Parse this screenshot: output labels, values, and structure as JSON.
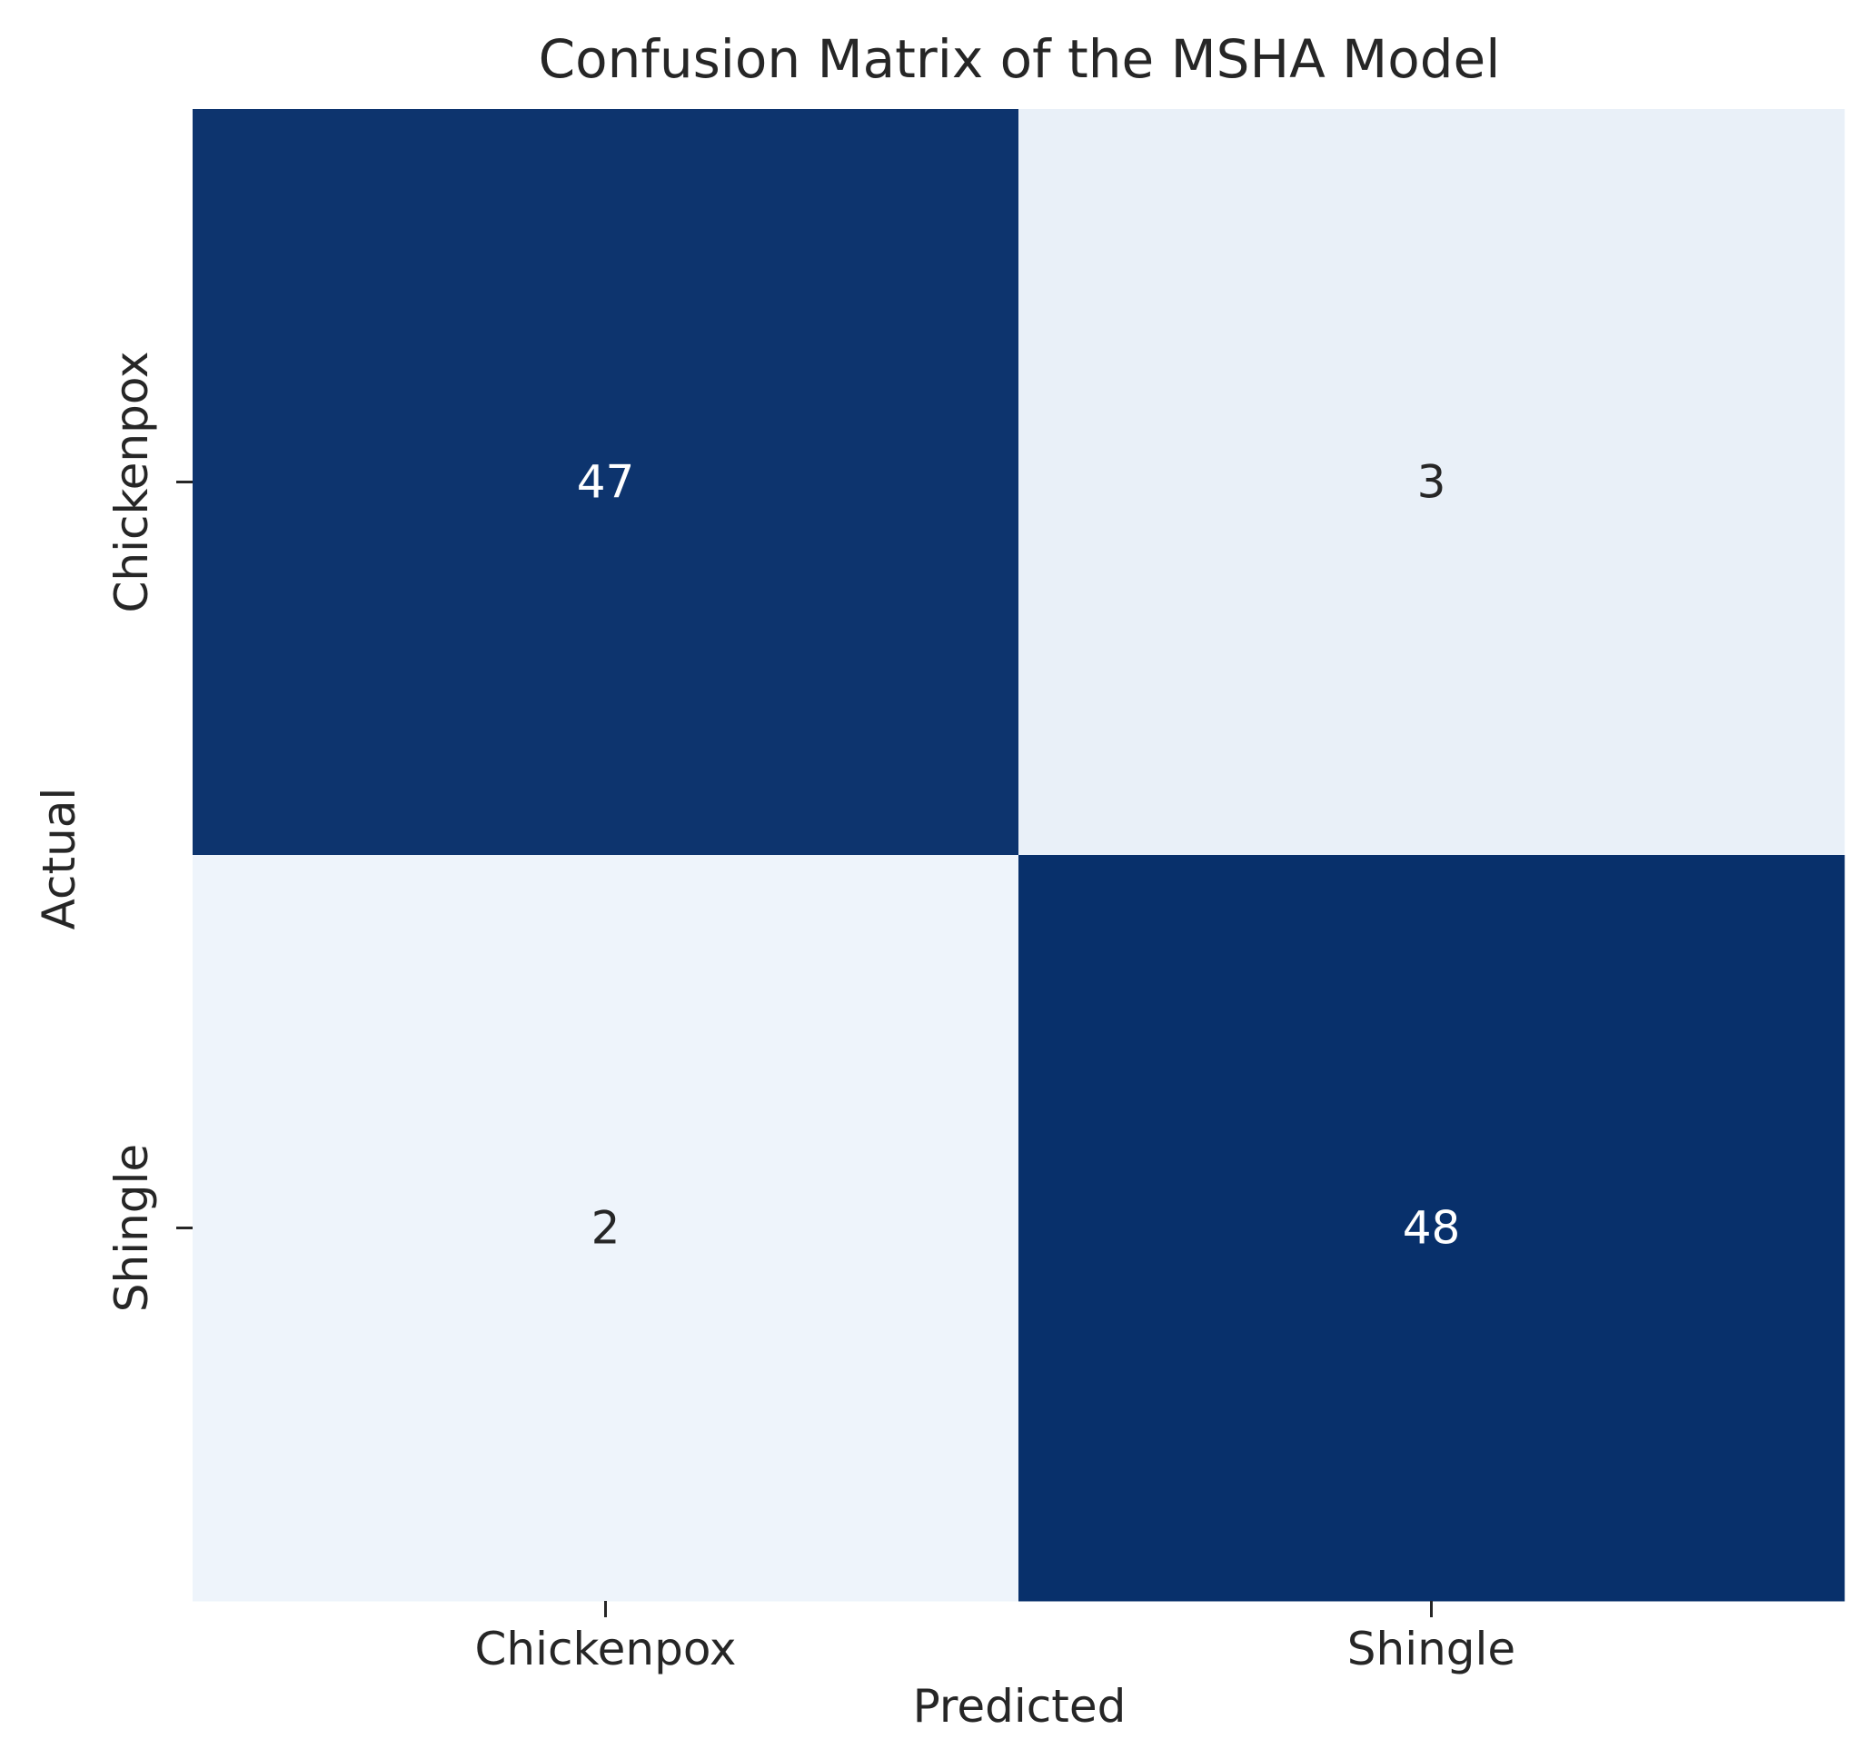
{
  "chart_data": {
    "type": "heatmap",
    "title": "Confusion Matrix of the MSHA Model",
    "xlabel": "Predicted",
    "ylabel": "Actual",
    "x_categories": [
      "Chickenpox",
      "Shingle"
    ],
    "y_categories": [
      "Chickenpox",
      "Shingle"
    ],
    "values": [
      [
        47,
        3
      ],
      [
        2,
        48
      ]
    ],
    "colormap": "Blues",
    "color_low": "#eef4fb",
    "color_high": "#08306b",
    "text_color_dark_cell": "#ffffff",
    "text_color_light_cell": "#262626",
    "colorbar": false,
    "grid": false
  }
}
